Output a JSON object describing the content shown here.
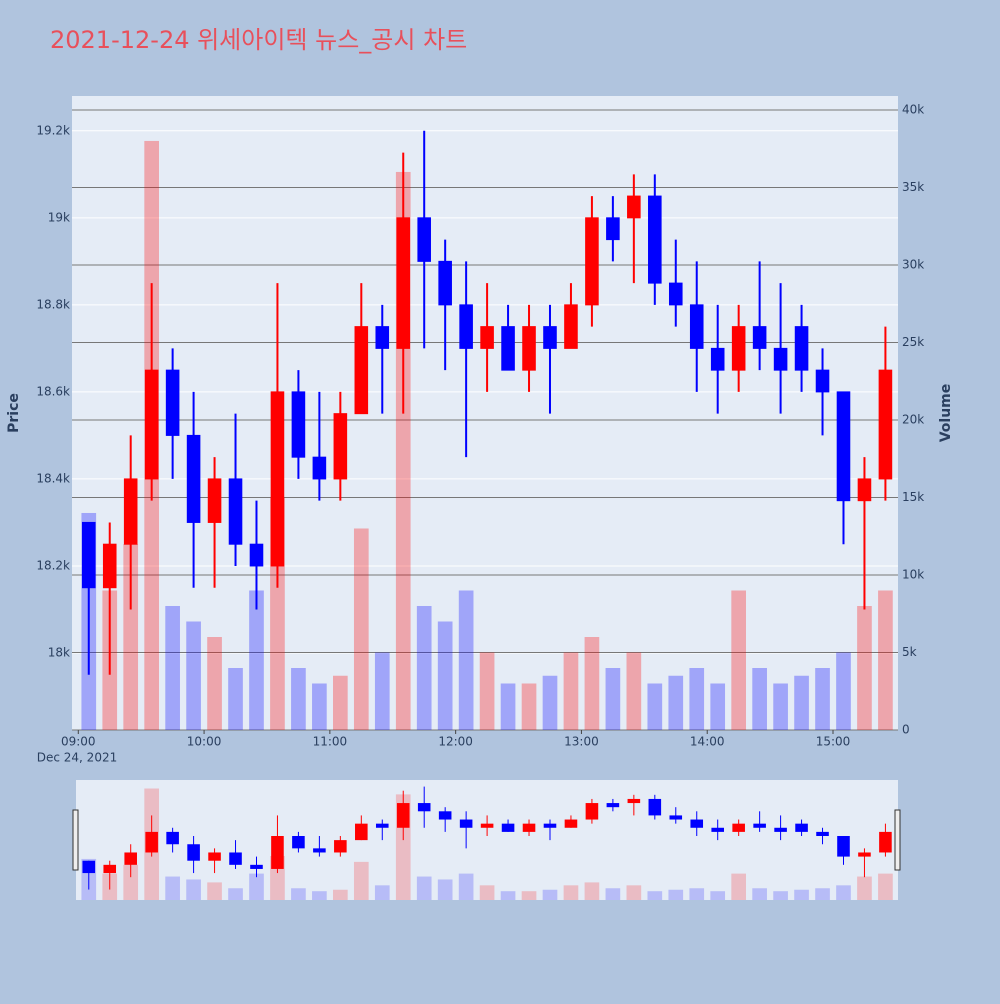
{
  "chart_data": {
    "type": "candlestick",
    "title": "2021-12-24 위세아이텍 뉴스_공시 차트",
    "y_label": "Price",
    "y2_label": "Volume",
    "x_date_label": "Dec 24, 2021",
    "increasing_color": "#ff0000",
    "decreasing_color": "#0000ff",
    "x": [
      "2021-12-24 09:00",
      "2021-12-24 09:10",
      "2021-12-24 09:20",
      "2021-12-24 09:30",
      "2021-12-24 09:40",
      "2021-12-24 09:50",
      "2021-12-24 10:00",
      "2021-12-24 10:10",
      "2021-12-24 10:20",
      "2021-12-24 10:30",
      "2021-12-24 10:40",
      "2021-12-24 10:50",
      "2021-12-24 11:00",
      "2021-12-24 11:10",
      "2021-12-24 11:20",
      "2021-12-24 11:30",
      "2021-12-24 11:40",
      "2021-12-24 11:50",
      "2021-12-24 12:00",
      "2021-12-24 12:10",
      "2021-12-24 12:20",
      "2021-12-24 12:30",
      "2021-12-24 12:40",
      "2021-12-24 12:50",
      "2021-12-24 13:00",
      "2021-12-24 13:10",
      "2021-12-24 13:20",
      "2021-12-24 13:30",
      "2021-12-24 13:40",
      "2021-12-24 13:50",
      "2021-12-24 14:00",
      "2021-12-24 14:10",
      "2021-12-24 14:20",
      "2021-12-24 14:30",
      "2021-12-24 14:40",
      "2021-12-24 14:50",
      "2021-12-24 15:00",
      "2021-12-24 15:10",
      "2021-12-24 15:20"
    ],
    "open": [
      18300,
      18150,
      18250,
      18400,
      18650,
      18500,
      18300,
      18400,
      18250,
      18200,
      18600,
      18450,
      18400,
      18550,
      18750,
      18700,
      19000,
      18900,
      18800,
      18700,
      18750,
      18650,
      18750,
      18700,
      18800,
      19000,
      19000,
      19050,
      18850,
      18800,
      18700,
      18650,
      18750,
      18700,
      18750,
      18650,
      18600,
      18350,
      18400
    ],
    "high": [
      18300,
      18300,
      18500,
      18850,
      18700,
      18600,
      18450,
      18550,
      18350,
      18850,
      18650,
      18600,
      18600,
      18850,
      18800,
      19150,
      19200,
      18950,
      18900,
      18850,
      18800,
      18800,
      18800,
      18850,
      19050,
      19050,
      19100,
      19100,
      18950,
      18900,
      18800,
      18800,
      18900,
      18850,
      18800,
      18700,
      18600,
      18450,
      18750
    ],
    "low": [
      17950,
      17950,
      18100,
      18350,
      18400,
      18150,
      18150,
      18200,
      18100,
      18150,
      18400,
      18350,
      18350,
      18550,
      18550,
      18550,
      18700,
      18650,
      18450,
      18600,
      18650,
      18600,
      18550,
      18700,
      18750,
      18900,
      18850,
      18800,
      18750,
      18600,
      18550,
      18600,
      18650,
      18550,
      18600,
      18500,
      18250,
      18100,
      18350
    ],
    "close": [
      18150,
      18250,
      18400,
      18650,
      18500,
      18300,
      18400,
      18250,
      18200,
      18600,
      18450,
      18400,
      18550,
      18750,
      18700,
      19000,
      18900,
      18800,
      18700,
      18750,
      18650,
      18750,
      18700,
      18800,
      19000,
      18950,
      19050,
      18850,
      18800,
      18700,
      18650,
      18750,
      18700,
      18650,
      18650,
      18600,
      18350,
      18400,
      18650
    ],
    "volume": [
      14000,
      9000,
      12000,
      38000,
      8000,
      7000,
      6000,
      4000,
      9000,
      15000,
      4000,
      3000,
      3500,
      13000,
      5000,
      36000,
      8000,
      7000,
      9000,
      5000,
      3000,
      3000,
      3500,
      5000,
      6000,
      4000,
      5000,
      3000,
      3500,
      4000,
      3000,
      9000,
      4000,
      3000,
      3500,
      4000,
      5000,
      8000,
      9000
    ],
    "xlim": [
      "2021-12-24 08:57",
      "2021-12-24 15:31"
    ],
    "xticks": [
      {
        "value": "2021-12-24 09:00",
        "label": "09:00"
      },
      {
        "value": "2021-12-24 10:00",
        "label": "10:00"
      },
      {
        "value": "2021-12-24 11:00",
        "label": "11:00"
      },
      {
        "value": "2021-12-24 12:00",
        "label": "12:00"
      },
      {
        "value": "2021-12-24 13:00",
        "label": "13:00"
      },
      {
        "value": "2021-12-24 14:00",
        "label": "14:00"
      },
      {
        "value": "2021-12-24 15:00",
        "label": "15:00"
      }
    ],
    "ylim": [
      17823,
      19280
    ],
    "yticks": [
      {
        "value": 18000,
        "label": "18k"
      },
      {
        "value": 18200,
        "label": "18.2k"
      },
      {
        "value": 18400,
        "label": "18.4k"
      },
      {
        "value": 18600,
        "label": "18.6k"
      },
      {
        "value": 18800,
        "label": "18.8k"
      },
      {
        "value": 19000,
        "label": "19k"
      },
      {
        "value": 19200,
        "label": "19.2k"
      }
    ],
    "y2lim": [
      0,
      40900
    ],
    "y2ticks": [
      0,
      {
        "value": 5000,
        "label": "5k"
      },
      {
        "value": 10000,
        "label": "10k"
      },
      {
        "value": 15000,
        "label": "15k"
      },
      {
        "value": 20000,
        "label": "20k"
      },
      {
        "value": 25000,
        "label": "25k"
      },
      {
        "value": 30000,
        "label": "30k"
      },
      {
        "value": 35000,
        "label": "35k"
      },
      {
        "value": 40000,
        "label": "40k"
      }
    ],
    "grid": true
  }
}
